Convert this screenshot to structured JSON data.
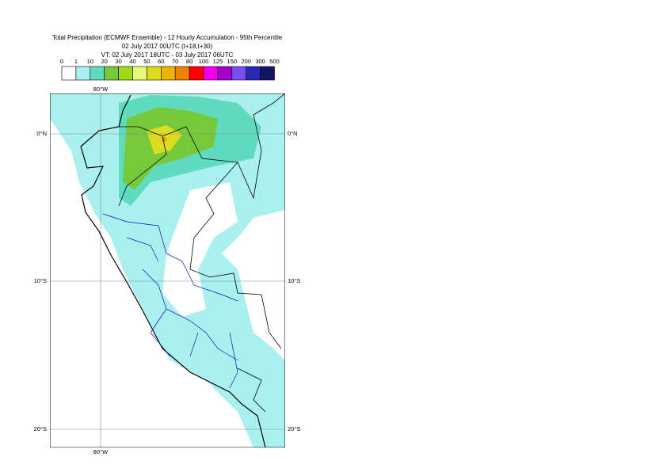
{
  "header": {
    "title": "Total Precipitation (ECMWF Ensemble) - 12 Hourly Accumulation - 95th Percentile",
    "subtitle": "02 July 2017 00UTC (t+18,t+30)",
    "valid_time": "VT: 02 July 2017 18UTC - 03 July 2017 06UTC"
  },
  "legend": {
    "levels": [
      0,
      1,
      10,
      20,
      30,
      40,
      50,
      60,
      70,
      80,
      100,
      125,
      150,
      200,
      300,
      500
    ],
    "colors": [
      "#ffffff",
      "#aaf0ee",
      "#5fdcc0",
      "#78c83c",
      "#a0dc14",
      "#e6f878",
      "#dcdc1e",
      "#f0b400",
      "#f08200",
      "#ff0000",
      "#ee00ee",
      "#a000c8",
      "#7850f0",
      "#2828b4",
      "#141464"
    ]
  },
  "map": {
    "lon_label": "80°W",
    "lat_labels": [
      "0°N",
      "10°S",
      "20°S"
    ]
  }
}
